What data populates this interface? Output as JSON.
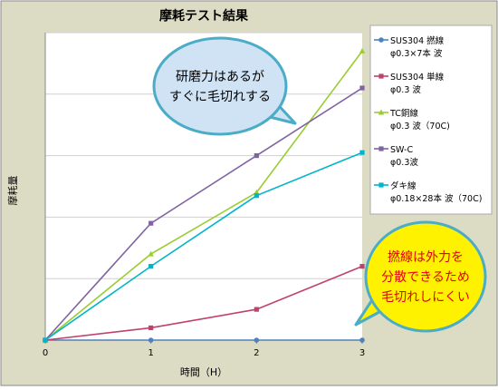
{
  "chart_data": {
    "type": "line",
    "title": "摩耗テスト結果",
    "xlabel": "時間（H）",
    "ylabel": "摩耗量",
    "x": [
      0,
      1,
      2,
      3
    ],
    "xlim": [
      0,
      3
    ],
    "ylim": [
      0,
      5
    ],
    "y_ticks_labeled": false,
    "grid": "horizontal",
    "legend_position": "right",
    "series": [
      {
        "name": "SUS304 撚線\nφ0.3×7本 波",
        "color": "#4f81bd",
        "marker": "circle",
        "values": [
          0,
          0,
          0,
          0
        ]
      },
      {
        "name": "SUS304 単線\nφ0.3 波",
        "color": "#c0406e",
        "marker": "square",
        "values": [
          0,
          0.2,
          0.5,
          1.2
        ]
      },
      {
        "name": "TC銅線\nφ0.3 波（70C)",
        "color": "#9acd32",
        "marker": "triangle",
        "values": [
          0,
          1.4,
          2.4,
          4.7
        ]
      },
      {
        "name": "SW-C\nφ0.3波",
        "color": "#8064a2",
        "marker": "square",
        "values": [
          0,
          1.9,
          3.0,
          4.1
        ]
      },
      {
        "name": "ダキ線\nφ0.18×28本 波（70C)",
        "color": "#00b4cc",
        "marker": "square",
        "values": [
          0,
          1.2,
          2.35,
          3.05
        ]
      }
    ],
    "annotations": [
      {
        "text": "研磨力はあるが\nすぐに毛切れする",
        "fill": "#cfe3f5",
        "stroke": "#4bacc6",
        "text_color": "#000000"
      },
      {
        "text": "撚線は外力を\n分散できるため\n毛切れしにくい",
        "fill": "#fff200",
        "stroke": "#4bacc6",
        "text_color": "#e3000f"
      }
    ]
  }
}
